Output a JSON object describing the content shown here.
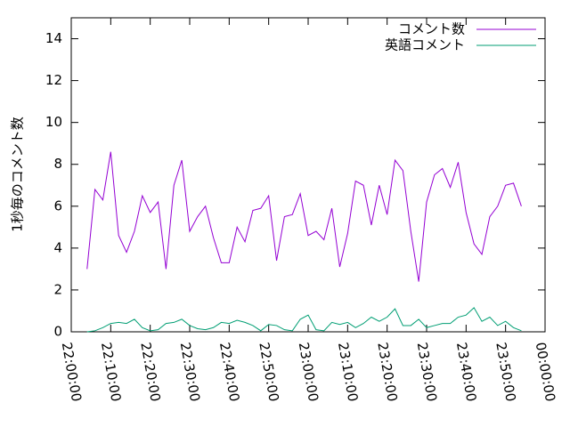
{
  "chart_data": {
    "type": "line",
    "y_label": "1秒毎のコメント数",
    "x": [
      "22:04:00",
      "22:06:00",
      "22:08:00",
      "22:10:00",
      "22:12:00",
      "22:14:00",
      "22:16:00",
      "22:18:00",
      "22:20:00",
      "22:22:00",
      "22:24:00",
      "22:26:00",
      "22:28:00",
      "22:30:00",
      "22:32:00",
      "22:34:00",
      "22:36:00",
      "22:38:00",
      "22:40:00",
      "22:42:00",
      "22:44:00",
      "22:46:00",
      "22:48:00",
      "22:50:00",
      "22:52:00",
      "22:54:00",
      "22:56:00",
      "22:58:00",
      "23:00:00",
      "23:02:00",
      "23:04:00",
      "23:06:00",
      "23:08:00",
      "23:10:00",
      "23:12:00",
      "23:14:00",
      "23:16:00",
      "23:18:00",
      "23:20:00",
      "23:22:00",
      "23:24:00",
      "23:26:00",
      "23:28:00",
      "23:30:00",
      "23:32:00",
      "23:34:00",
      "23:36:00",
      "23:38:00",
      "23:40:00",
      "23:42:00",
      "23:44:00",
      "23:46:00",
      "23:48:00",
      "23:50:00",
      "23:52:00",
      "23:54:00"
    ],
    "series": [
      {
        "name": "コメント数",
        "color": "#9400d3",
        "values": [
          3.0,
          6.8,
          6.3,
          8.6,
          4.6,
          3.8,
          4.8,
          6.5,
          5.7,
          6.2,
          3.0,
          7.0,
          8.2,
          4.8,
          5.5,
          6.0,
          4.5,
          3.3,
          3.3,
          5.0,
          4.3,
          5.8,
          5.9,
          6.5,
          3.4,
          5.5,
          5.6,
          6.6,
          4.6,
          4.8,
          4.4,
          5.9,
          3.1,
          4.7,
          7.2,
          7.0,
          5.1,
          7.0,
          5.6,
          8.2,
          7.7,
          4.8,
          2.4,
          6.2,
          7.5,
          7.8,
          6.9,
          8.1,
          5.7,
          4.2,
          3.7,
          5.5,
          6.0,
          7.0,
          7.1,
          6.0
        ]
      },
      {
        "name": "英語コメント",
        "color": "#009e73",
        "values": [
          0,
          0.05,
          0.2,
          0.4,
          0.45,
          0.4,
          0.6,
          0.2,
          0.05,
          0.1,
          0.4,
          0.45,
          0.6,
          0.3,
          0.15,
          0.1,
          0.2,
          0.45,
          0.4,
          0.55,
          0.45,
          0.3,
          0.05,
          0.35,
          0.3,
          0.1,
          0.05,
          0.6,
          0.8,
          0.1,
          0.05,
          0.45,
          0.35,
          0.45,
          0.2,
          0.4,
          0.7,
          0.5,
          0.7,
          1.1,
          0.3,
          0.3,
          0.6,
          0.2,
          0.3,
          0.4,
          0.4,
          0.7,
          0.8,
          1.15,
          0.5,
          0.7,
          0.3,
          0.5,
          0.2,
          0.05
        ]
      }
    ],
    "xlim": [
      "22:00:00",
      "00:00:00"
    ],
    "xticks": [
      "22:00:00",
      "22:10:00",
      "22:20:00",
      "22:30:00",
      "22:40:00",
      "22:50:00",
      "23:00:00",
      "23:10:00",
      "23:20:00",
      "23:30:00",
      "23:40:00",
      "23:50:00",
      "00:00:00"
    ],
    "ylim": [
      0,
      15
    ],
    "yticks": [
      0,
      2,
      4,
      6,
      8,
      10,
      12,
      14
    ],
    "legend": "top-right"
  }
}
